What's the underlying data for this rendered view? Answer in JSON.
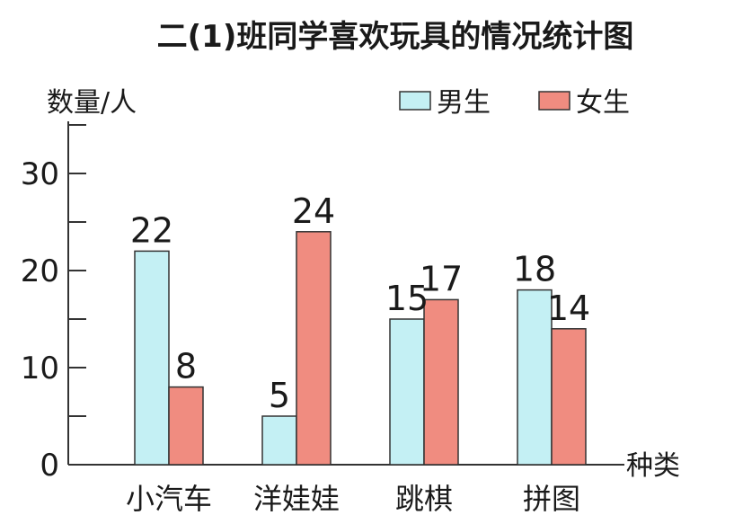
{
  "chart_data": {
    "type": "bar",
    "title": "二(1)班同学喜欢玩具的情况统计图",
    "ylabel": "数量/人",
    "xlabel": "种类",
    "categories": [
      "小汽车",
      "洋娃娃",
      "跳棋",
      "拼图"
    ],
    "series": [
      {
        "name": "男生",
        "values": [
          22,
          5,
          15,
          18
        ],
        "color": "#c4f0f4"
      },
      {
        "name": "女生",
        "values": [
          8,
          24,
          17,
          14
        ],
        "color": "#f08c80"
      }
    ],
    "yticks": [
      "0",
      "10",
      "20",
      "30"
    ],
    "ylim": [
      0,
      35
    ],
    "legend_position": "top-right",
    "grid": false
  }
}
